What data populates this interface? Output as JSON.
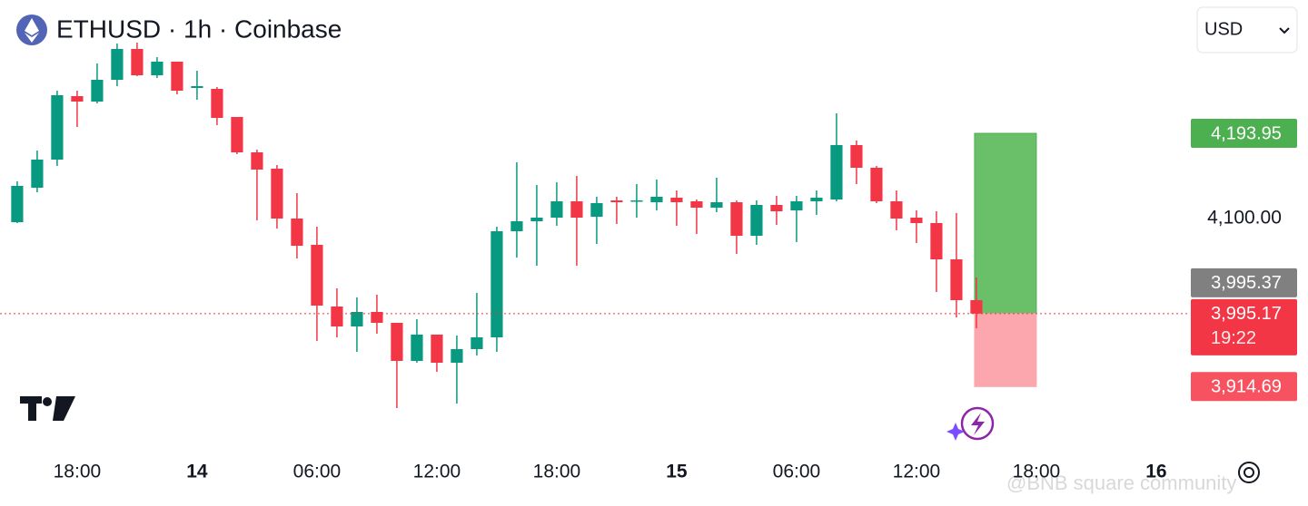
{
  "header": {
    "symbol": "ETHUSD · 1h · Coinbase",
    "currency": "USD"
  },
  "chart_data": {
    "type": "candlestick",
    "open": [
      4096,
      4134,
      4165,
      4235,
      4229,
      4253,
      4287,
      4258,
      4273,
      4244,
      4243,
      4212,
      4173,
      4155,
      4100,
      4071,
      4003,
      3981,
      3997,
      3985,
      3943,
      3972,
      3941,
      3956,
      3969,
      4086,
      4097,
      4101,
      4119,
      4102,
      4120,
      4119,
      4118,
      4123,
      4119,
      4112,
      4118,
      4081,
      4115,
      4109,
      4119,
      4121,
      4181,
      4156,
      4119,
      4101,
      4095,
      4055,
      4010
    ],
    "high": [
      4141,
      4175,
      4241,
      4241,
      4271,
      4293,
      4294,
      4278,
      4273,
      4263,
      4245,
      4212,
      4176,
      4159,
      4128,
      4091,
      4023,
      4013,
      4016,
      3985,
      3989,
      3972,
      3971,
      4018,
      4091,
      4162,
      4137,
      4140,
      4147,
      4124,
      4124,
      4138,
      4143,
      4131,
      4121,
      4145,
      4120,
      4120,
      4125,
      4125,
      4131,
      4216,
      4186,
      4158,
      4131,
      4109,
      4108,
      4106,
      4035
    ],
    "low": [
      4095,
      4129,
      4158,
      4201,
      4227,
      4246,
      4257,
      4255,
      4237,
      4231,
      4203,
      4171,
      4098,
      4089,
      4056,
      3965,
      3969,
      3953,
      3973,
      3891,
      3941,
      3931,
      3896,
      3949,
      3953,
      4057,
      4048,
      4092,
      4048,
      4072,
      4094,
      4101,
      4109,
      4092,
      4083,
      4107,
      4061,
      4071,
      4093,
      4074,
      4104,
      4119,
      4138,
      4117,
      4087,
      4073,
      4019,
      3991,
      3979
    ],
    "close": [
      4136,
      4165,
      4236,
      4229,
      4253,
      4287,
      4258,
      4273,
      4241,
      4246,
      4211,
      4173,
      4154,
      4100,
      4070,
      4004,
      3981,
      3997,
      3985,
      3943,
      3972,
      3941,
      3956,
      3969,
      4086,
      4097,
      4101,
      4119,
      4101,
      4117,
      4118,
      4120,
      4124,
      4118,
      4112,
      4118,
      4081,
      4115,
      4108,
      4119,
      4123,
      4181,
      4156,
      4119,
      4100,
      4095,
      4055,
      4010,
      3995.17
    ],
    "up_color": "#089981",
    "down_color": "#f23645",
    "xlim": [
      -0.86,
      58.23
    ],
    "xticks": [
      {
        "value": 3,
        "label": "18:00"
      },
      {
        "value": 9,
        "label": "14"
      },
      {
        "value": 15,
        "label": "06:00"
      },
      {
        "value": 21,
        "label": "12:00"
      },
      {
        "value": 27,
        "label": "18:00"
      },
      {
        "value": 33,
        "label": "15"
      },
      {
        "value": 39,
        "label": "06:00"
      },
      {
        "value": 45,
        "label": "12:00"
      },
      {
        "value": 51,
        "label": "18:00"
      },
      {
        "value": 57,
        "label": "16"
      }
    ],
    "ylim": [
      3841,
      4341
    ],
    "yticks": [
      {
        "value": 4100,
        "label": "4,100.00"
      }
    ],
    "last_price": {
      "value": 3995.17,
      "label": "3,995.17",
      "countdown": "19:22",
      "color": "#f23645"
    },
    "prev_price": {
      "value": 3995.37,
      "label": "3,995.37",
      "color": "#808080"
    },
    "take_profit": {
      "value": 4193.95,
      "label": "4,193.95",
      "color": "#4caf50",
      "fill": "#6abf69"
    },
    "stop_loss": {
      "value": 3914.69,
      "label": "3,914.69",
      "color": "#f7525f",
      "fill": "#fca6ae"
    }
  },
  "watermark": "@BNB square community"
}
